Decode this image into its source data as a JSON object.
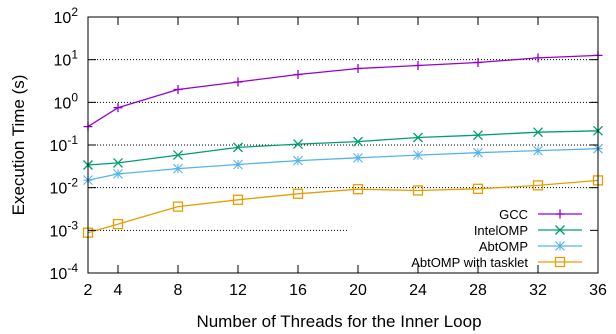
{
  "chart_data": {
    "type": "line",
    "xlabel": "Number of Threads for the Inner Loop",
    "ylabel": "Execution Time (s)",
    "y_scale": "log",
    "ylim": [
      0.0001,
      100
    ],
    "xlim": [
      2,
      36
    ],
    "x_ticks": [
      2,
      4,
      8,
      12,
      16,
      20,
      24,
      28,
      32,
      36
    ],
    "y_ticks": [
      {
        "value": 0.0001,
        "mantissa": "10",
        "exp": "-4"
      },
      {
        "value": 0.001,
        "mantissa": "10",
        "exp": "-3"
      },
      {
        "value": 0.01,
        "mantissa": "10",
        "exp": "-2"
      },
      {
        "value": 0.1,
        "mantissa": "10",
        "exp": "-1"
      },
      {
        "value": 1,
        "mantissa": "10",
        "exp": "0"
      },
      {
        "value": 10,
        "mantissa": "10",
        "exp": "1"
      },
      {
        "value": 100,
        "mantissa": "10",
        "exp": "2"
      }
    ],
    "grid": "horizontal dotted at major y ticks",
    "legend_position": "bottom-right",
    "x": [
      2,
      4,
      8,
      12,
      16,
      20,
      24,
      28,
      32,
      36
    ],
    "series": [
      {
        "name": "GCC",
        "color": "#9400d3",
        "marker": "plus",
        "values": [
          0.27,
          0.75,
          2.0,
          3.0,
          4.5,
          6.2,
          7.3,
          8.6,
          11.0,
          12.6
        ]
      },
      {
        "name": "IntelOMP",
        "color": "#009e73",
        "marker": "cross",
        "values": [
          0.034,
          0.038,
          0.058,
          0.088,
          0.105,
          0.12,
          0.15,
          0.17,
          0.2,
          0.215
        ]
      },
      {
        "name": "AbtOMP",
        "color": "#56b4e9",
        "marker": "star",
        "values": [
          0.015,
          0.021,
          0.028,
          0.035,
          0.043,
          0.05,
          0.058,
          0.066,
          0.074,
          0.082
        ]
      },
      {
        "name": "AbtOMP with tasklet",
        "color": "#e69f00",
        "marker": "square",
        "values": [
          0.00088,
          0.0014,
          0.0036,
          0.0052,
          0.0072,
          0.0092,
          0.0086,
          0.0094,
          0.0113,
          0.0148
        ]
      }
    ]
  }
}
